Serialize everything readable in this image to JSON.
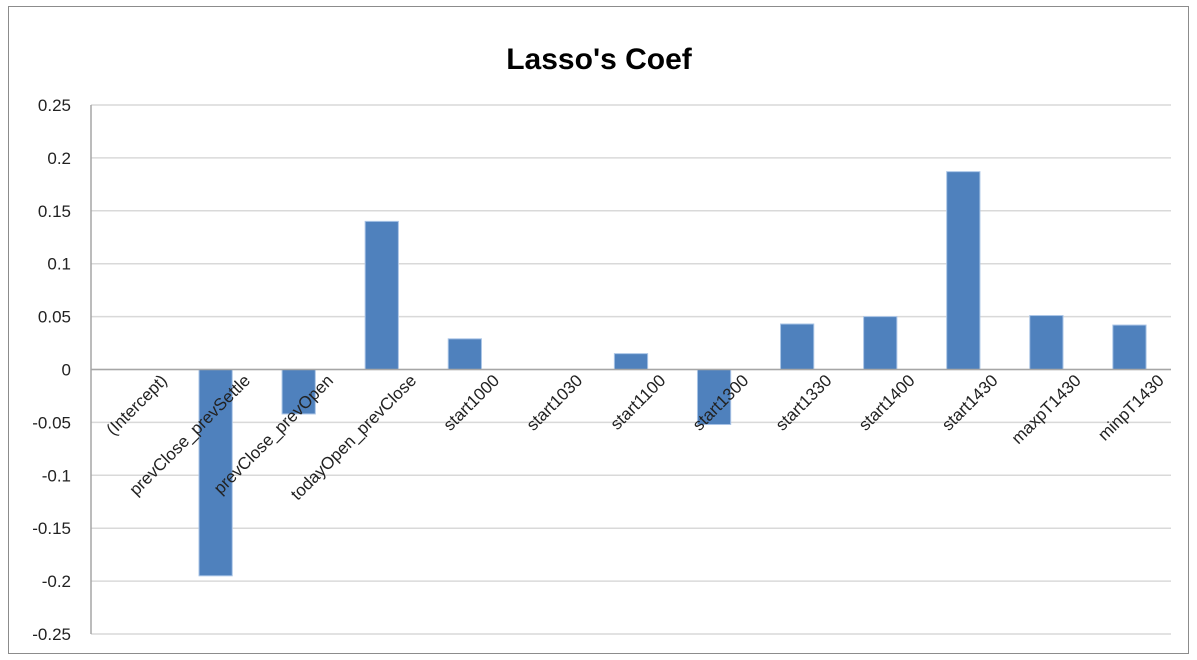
{
  "chart_data": {
    "type": "bar",
    "title": "Lasso's Coef",
    "xlabel": "",
    "ylabel": "",
    "categories": [
      "(Intercept)",
      "prevClose_prevSettle",
      "prevClose_prevOpen",
      "todayOpen_prevClose",
      "start1000",
      "start1030",
      "start1100",
      "start1300",
      "start1330",
      "start1400",
      "start1430",
      "maxpT1430",
      "minpT1430"
    ],
    "series": [
      {
        "values": [
          0,
          -0.195,
          -0.042,
          0.14,
          0.029,
          0,
          0.015,
          -0.052,
          0.043,
          0.05,
          0.187,
          0.051,
          0.042
        ]
      }
    ],
    "ylim": [
      -0.25,
      0.25
    ],
    "yticks": [
      0.25,
      0.2,
      0.15,
      0.1,
      0.05,
      0,
      -0.05,
      -0.1,
      -0.15,
      -0.2,
      -0.25
    ],
    "ytick_labels": [
      "0.25",
      "0.2",
      "0.15",
      "0.1",
      "0.05",
      "0",
      "-0.05",
      "-0.1",
      "-0.15",
      "-0.2",
      "-0.25"
    ],
    "grid": true,
    "legend": "none",
    "colors": {
      "bar": "#4f81bd",
      "grid": "#d9d9d9",
      "axis": "#a6a6a6"
    }
  }
}
